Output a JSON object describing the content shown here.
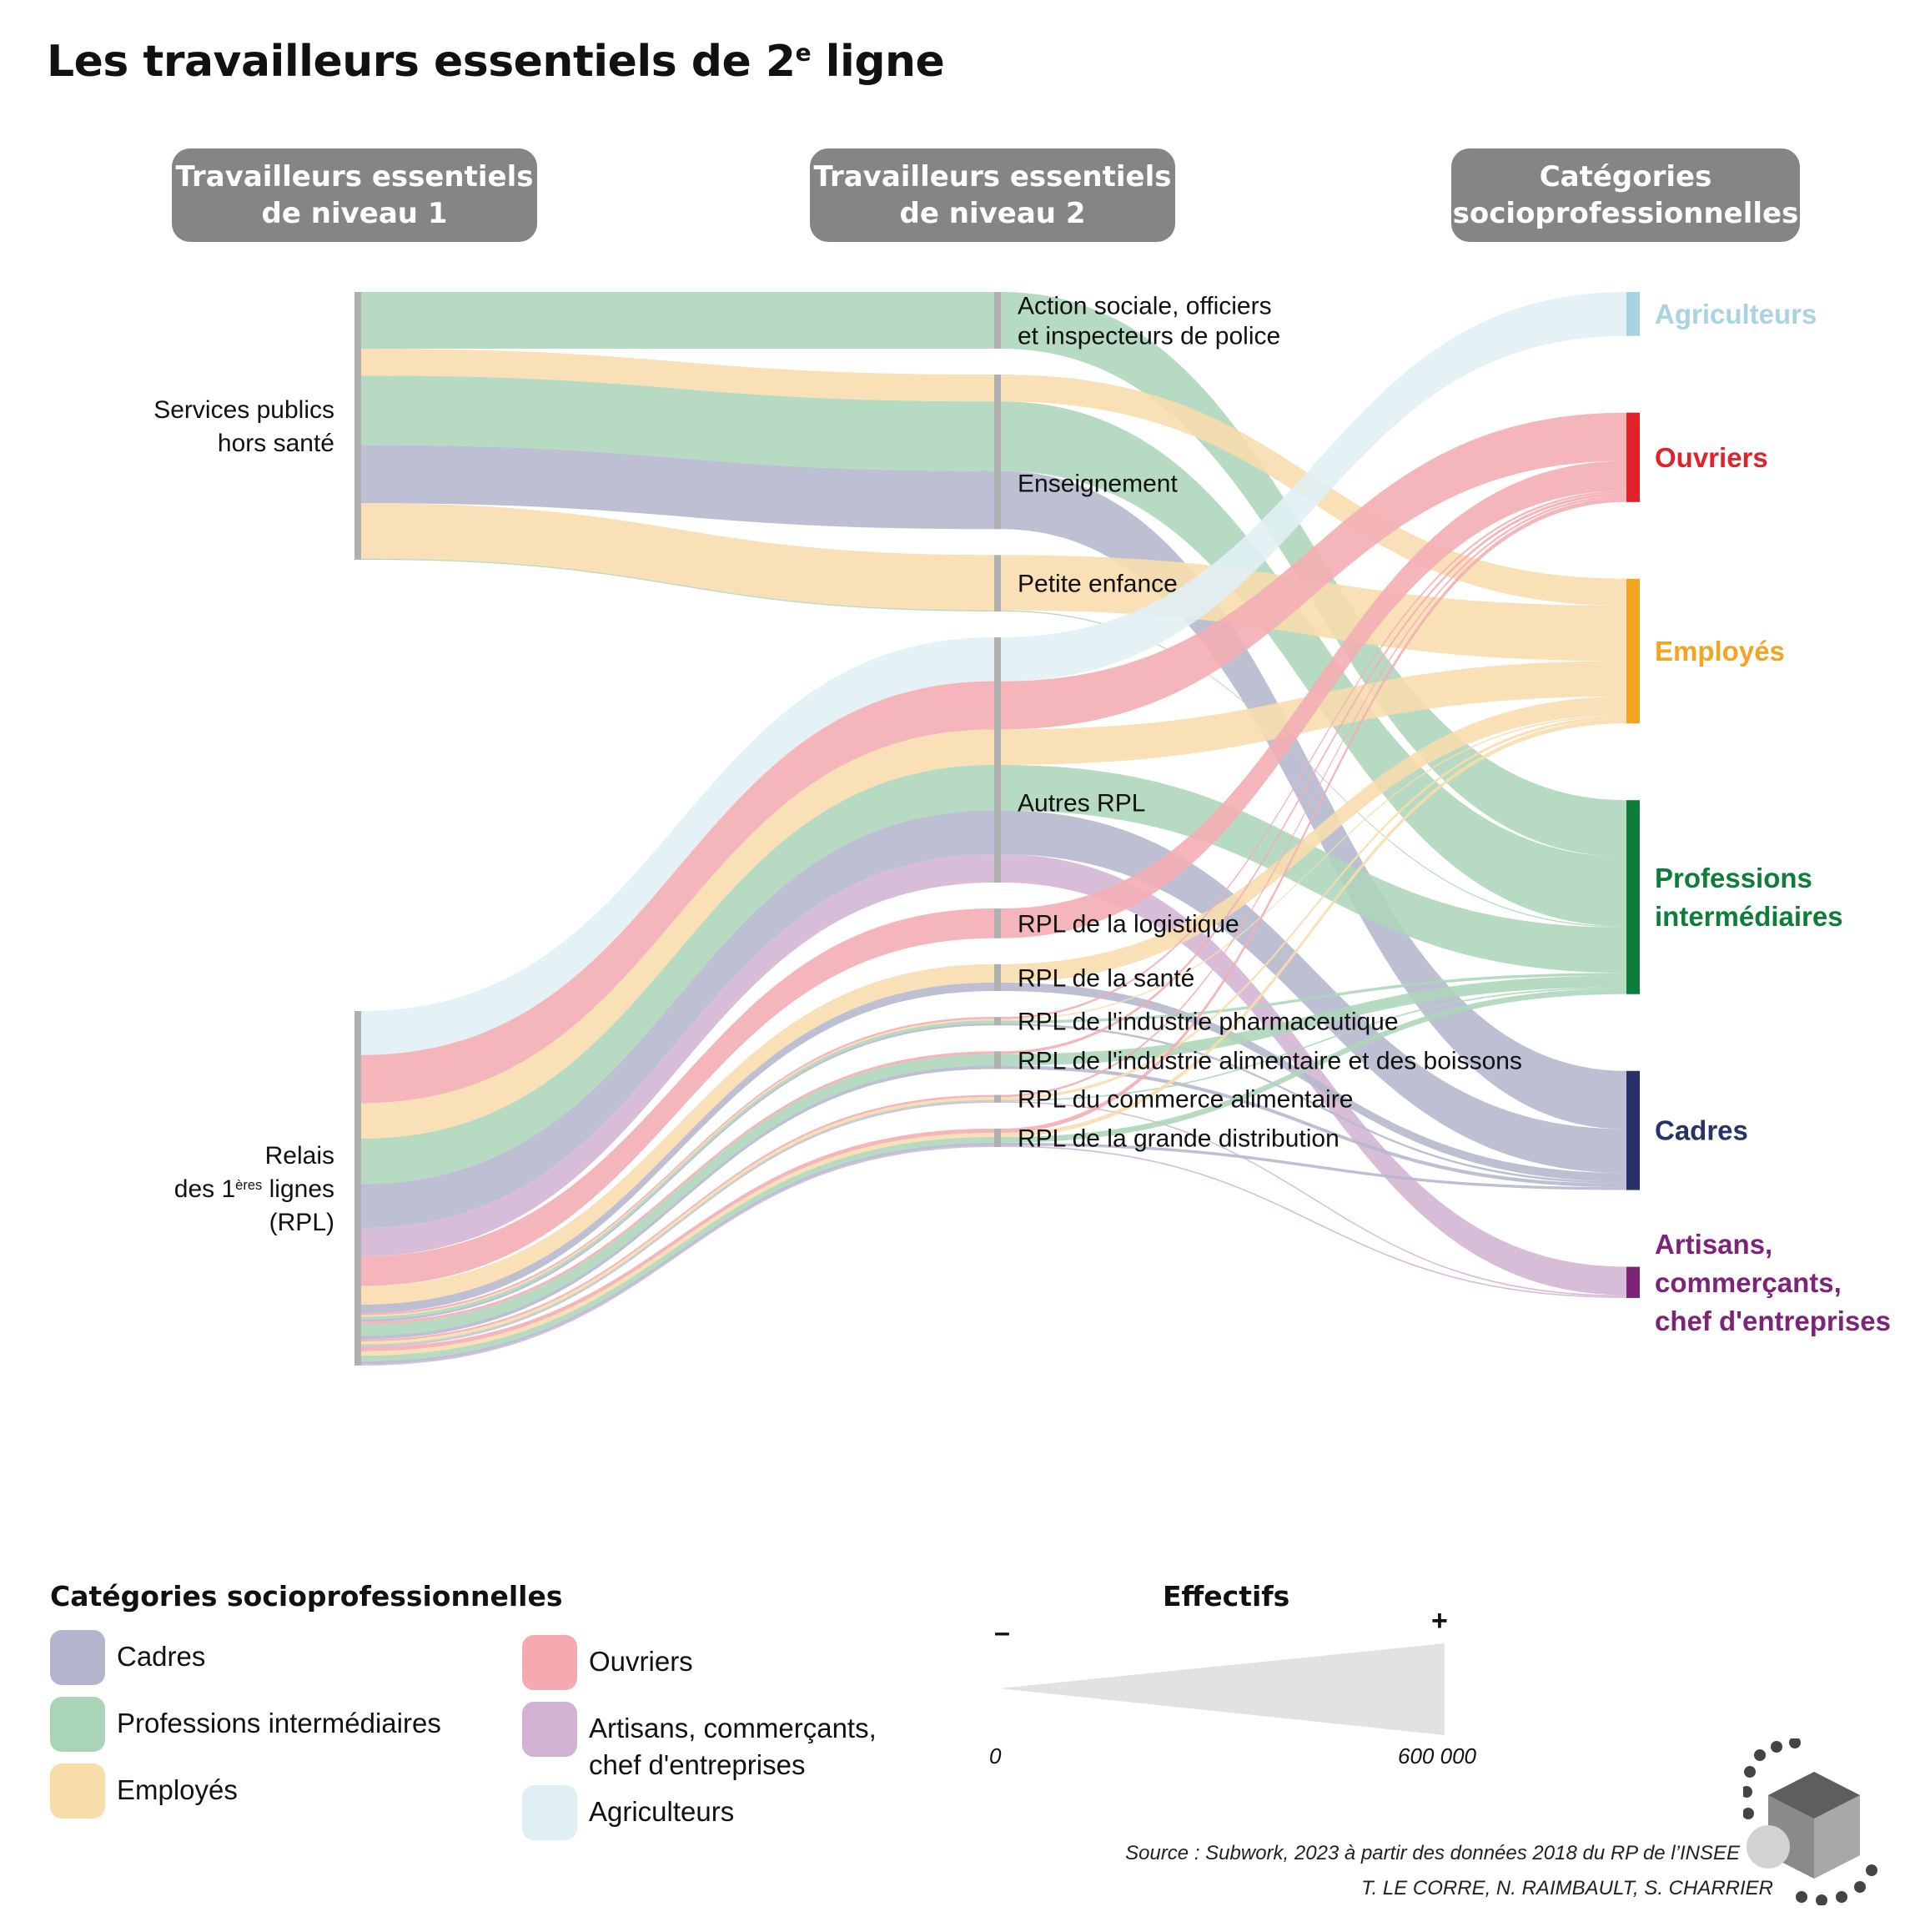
{
  "title": {
    "main": "Les travailleurs essentiels de 2",
    "sup": "e",
    "end": " ligne"
  },
  "headers": {
    "level1": [
      "Travailleurs essentiels",
      "de niveau 1"
    ],
    "level2": [
      "Travailleurs essentiels",
      "de niveau 2"
    ],
    "csp": [
      "Catégories",
      "socioprofessionnelles"
    ]
  },
  "colors": {
    "cad": "#b2b5cc",
    "pi": "#aad4b8",
    "emp": "#f8dcaa",
    "ouv": "#f4aab0",
    "art": "#d2b2d2",
    "agr": "#e0eff4",
    "bar": "#b0b0b0"
  },
  "chart_data": {
    "type": "sankey",
    "unit": "Effectifs",
    "level1": [
      {
        "id": "sp",
        "lines": [
          "Services publics",
          "hors santé"
        ]
      },
      {
        "id": "rpl",
        "lines": [
          "Relais",
          "des 1|ères| lignes",
          "(RPL)"
        ]
      }
    ],
    "level2": [
      {
        "id": "asp",
        "lines": [
          "Action sociale, officiers",
          "et inspecteurs de police"
        ]
      },
      {
        "id": "ens",
        "lines": [
          "Enseignement"
        ]
      },
      {
        "id": "pe",
        "lines": [
          "Petite enfance"
        ]
      },
      {
        "id": "arpl",
        "lines": [
          "Autres RPL"
        ]
      },
      {
        "id": "log",
        "lines": [
          "RPL de la logistique"
        ]
      },
      {
        "id": "san",
        "lines": [
          "RPL de la santé"
        ]
      },
      {
        "id": "pha",
        "lines": [
          "RPL de l'industrie pharmaceutique"
        ]
      },
      {
        "id": "ali",
        "lines": [
          "RPL de l'industrie alimentaire et des boissons"
        ]
      },
      {
        "id": "com",
        "lines": [
          "RPL du commerce alimentaire"
        ]
      },
      {
        "id": "gd",
        "lines": [
          "RPL de la grande distribution"
        ]
      }
    ],
    "csp": [
      {
        "id": "agr",
        "lines": [
          "Agriculteurs"
        ],
        "color": "#a9d3e0"
      },
      {
        "id": "ouv",
        "lines": [
          "Ouvriers"
        ],
        "color": "#e0222b"
      },
      {
        "id": "emp",
        "lines": [
          "Employés"
        ],
        "color": "#f2a522"
      },
      {
        "id": "pi",
        "lines": [
          "Professions",
          "intermédiaires"
        ],
        "color": "#0f7d3a"
      },
      {
        "id": "cad",
        "lines": [
          "Cadres"
        ],
        "color": "#27316a"
      },
      {
        "id": "art",
        "lines": [
          "Artisans,",
          "commerçants,",
          "chef d'entreprises"
        ],
        "color": "#7d2479"
      }
    ],
    "flows": [
      {
        "l1": "sp",
        "l2": "asp",
        "csp": "pi",
        "value": 400000
      },
      {
        "l1": "sp",
        "l2": "ens",
        "csp": "emp",
        "value": 190000
      },
      {
        "l1": "sp",
        "l2": "ens",
        "csp": "pi",
        "value": 490000
      },
      {
        "l1": "sp",
        "l2": "ens",
        "csp": "cad",
        "value": 410000
      },
      {
        "l1": "sp",
        "l2": "pe",
        "csp": "emp",
        "value": 390000
      },
      {
        "l1": "sp",
        "l2": "pe",
        "csp": "pi",
        "value": 8000
      },
      {
        "l1": "rpl",
        "l2": "arpl",
        "csp": "agr",
        "value": 310000
      },
      {
        "l1": "rpl",
        "l2": "arpl",
        "csp": "ouv",
        "value": 340000
      },
      {
        "l1": "rpl",
        "l2": "arpl",
        "csp": "emp",
        "value": 250000
      },
      {
        "l1": "rpl",
        "l2": "arpl",
        "csp": "pi",
        "value": 320000
      },
      {
        "l1": "rpl",
        "l2": "arpl",
        "csp": "cad",
        "value": 310000
      },
      {
        "l1": "rpl",
        "l2": "arpl",
        "csp": "art",
        "value": 200000
      },
      {
        "l1": "rpl",
        "l2": "log",
        "csp": "ouv",
        "value": 210000
      },
      {
        "l1": "rpl",
        "l2": "san",
        "csp": "emp",
        "value": 130000
      },
      {
        "l1": "rpl",
        "l2": "san",
        "csp": "cad",
        "value": 60000
      },
      {
        "l1": "rpl",
        "l2": "pha",
        "csp": "ouv",
        "value": 15000
      },
      {
        "l1": "rpl",
        "l2": "pha",
        "csp": "emp",
        "value": 10000
      },
      {
        "l1": "rpl",
        "l2": "pha",
        "csp": "pi",
        "value": 20000
      },
      {
        "l1": "rpl",
        "l2": "pha",
        "csp": "cad",
        "value": 15000
      },
      {
        "l1": "rpl",
        "l2": "ali",
        "csp": "ouv",
        "value": 20000
      },
      {
        "l1": "rpl",
        "l2": "ali",
        "csp": "pi",
        "value": 80000
      },
      {
        "l1": "rpl",
        "l2": "ali",
        "csp": "cad",
        "value": 25000
      },
      {
        "l1": "rpl",
        "l2": "com",
        "csp": "ouv",
        "value": 15000
      },
      {
        "l1": "rpl",
        "l2": "com",
        "csp": "emp",
        "value": 20000
      },
      {
        "l1": "rpl",
        "l2": "com",
        "csp": "pi",
        "value": 10000
      },
      {
        "l1": "rpl",
        "l2": "com",
        "csp": "art",
        "value": 10000
      },
      {
        "l1": "rpl",
        "l2": "gd",
        "csp": "ouv",
        "value": 30000
      },
      {
        "l1": "rpl",
        "l2": "gd",
        "csp": "emp",
        "value": 30000
      },
      {
        "l1": "rpl",
        "l2": "gd",
        "csp": "pi",
        "value": 40000
      },
      {
        "l1": "rpl",
        "l2": "gd",
        "csp": "cad",
        "value": 20000
      },
      {
        "l1": "rpl",
        "l2": "gd",
        "csp": "art",
        "value": 10000
      }
    ],
    "legend_position": "bottom-left"
  },
  "legend": {
    "title": "Catégories socioprofessionnelles",
    "items": [
      {
        "key": "cad",
        "label": [
          "Cadres"
        ]
      },
      {
        "key": "pi",
        "label": [
          "Professions intermédiaires"
        ]
      },
      {
        "key": "emp",
        "label": [
          "Employés"
        ]
      },
      {
        "key": "ouv",
        "label": [
          "Ouvriers"
        ]
      },
      {
        "key": "art",
        "label": [
          "Artisans, commerçants,",
          "chef d'entreprises"
        ]
      },
      {
        "key": "agr",
        "label": [
          "Agriculteurs"
        ]
      }
    ]
  },
  "size_legend": {
    "title": "Effectifs",
    "minus": "–",
    "plus": "+",
    "min_label": "0",
    "max_label": "600 000",
    "max_value": 600000
  },
  "source": "Source : Subwork, 2023 à partir des données 2018 du RP de l’INSEE",
  "credits": "T. LE CORRE, N. RAIMBAULT, S. CHARRIER"
}
